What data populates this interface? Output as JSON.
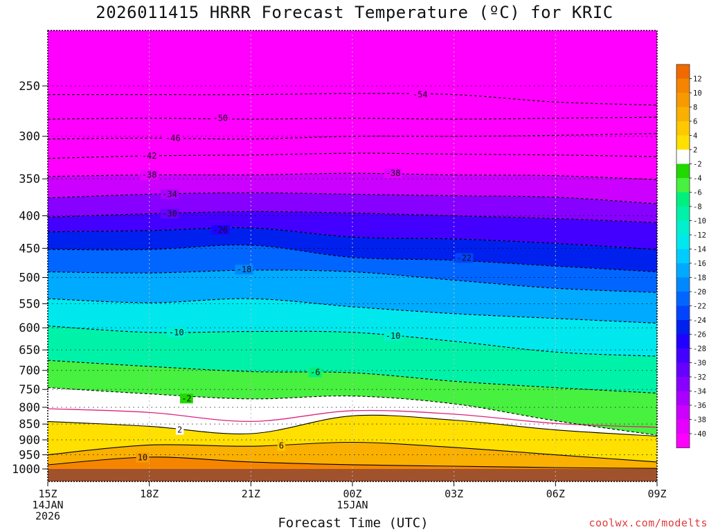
{
  "title": "2026011415 HRRR Forecast Temperature (ºC) for KRIC",
  "credit": "coolwx.com/modelts",
  "chart_data": {
    "type": "heatmap",
    "title": "2026011415 HRRR Forecast Temperature (ºC) for KRIC",
    "xlabel": "Forecast Time (UTC)",
    "ylabel": "",
    "y_scale": "log-pressure (hPa), inverted",
    "ylim": [
      1000,
      200
    ],
    "xlim": [
      "2026-01-14 15Z",
      "2026-01-15 09Z"
    ],
    "grid": true,
    "x_ticks": [
      {
        "hour": 0,
        "lines": [
          "15Z",
          "14JAN",
          "2026"
        ]
      },
      {
        "hour": 3,
        "lines": [
          "18Z"
        ]
      },
      {
        "hour": 6,
        "lines": [
          "21Z"
        ]
      },
      {
        "hour": 9,
        "lines": [
          "00Z",
          "15JAN"
        ]
      },
      {
        "hour": 12,
        "lines": [
          "03Z"
        ]
      },
      {
        "hour": 15,
        "lines": [
          "06Z"
        ]
      },
      {
        "hour": 18,
        "lines": [
          "09Z"
        ]
      }
    ],
    "y_ticks": [
      250,
      300,
      350,
      400,
      450,
      500,
      550,
      600,
      650,
      700,
      750,
      800,
      850,
      900,
      950,
      1000
    ],
    "hours": [
      0,
      3,
      6,
      9,
      12,
      15,
      18
    ],
    "isotherm_pressure_hPa": [
      {
        "temp": 10,
        "p": [
          985,
          958,
          975,
          985,
          990,
          995,
          998
        ]
      },
      {
        "temp": 6,
        "p": [
          950,
          917,
          921,
          908,
          925,
          950,
          975
        ]
      },
      {
        "temp": 2,
        "p": [
          842,
          857,
          880,
          825,
          838,
          868,
          888
        ]
      },
      {
        "temp": 0,
        "p": [
          804,
          815,
          842,
          810,
          820,
          848,
          860
        ]
      },
      {
        "temp": -2,
        "p": [
          745,
          762,
          776,
          768,
          790,
          840,
          885
        ]
      },
      {
        "temp": -6,
        "p": [
          675,
          690,
          703,
          706,
          728,
          745,
          760
        ]
      },
      {
        "temp": -10,
        "p": [
          596,
          610,
          608,
          610,
          630,
          655,
          665
        ]
      },
      {
        "temp": -14,
        "p": [
          540,
          548,
          540,
          556,
          570,
          580,
          590
        ]
      },
      {
        "temp": -18,
        "p": [
          490,
          492,
          487,
          490,
          505,
          520,
          528
        ]
      },
      {
        "temp": -22,
        "p": [
          452,
          452,
          445,
          465,
          470,
          480,
          490
        ]
      },
      {
        "temp": -26,
        "p": [
          424,
          422,
          418,
          432,
          435,
          442,
          452
        ]
      },
      {
        "temp": -30,
        "p": [
          402,
          397,
          394,
          396,
          400,
          404,
          410
        ]
      },
      {
        "temp": -34,
        "p": [
          375,
          370,
          368,
          370,
          372,
          374,
          383
        ]
      },
      {
        "temp": -38,
        "p": [
          347,
          345,
          345,
          343,
          345,
          346,
          351
        ]
      },
      {
        "temp": -42,
        "p": [
          325,
          322,
          321,
          319,
          320,
          321,
          323
        ]
      },
      {
        "temp": -46,
        "p": [
          303,
          302,
          303,
          300,
          300,
          299,
          297
        ]
      },
      {
        "temp": -50,
        "p": [
          282,
          281,
          282,
          281,
          282,
          281,
          280
        ]
      },
      {
        "temp": -54,
        "p": [
          258,
          258,
          258,
          257,
          258,
          265,
          268
        ]
      }
    ],
    "contour_labels": [
      {
        "text": "10",
        "hour": 2.8,
        "p": 960
      },
      {
        "text": "6",
        "hour": 6.9,
        "p": 920
      },
      {
        "text": "2",
        "hour": 3.9,
        "p": 868
      },
      {
        "text": "-2",
        "hour": 4.1,
        "p": 775
      },
      {
        "text": "-6",
        "hour": 7.9,
        "p": 705
      },
      {
        "text": "-10",
        "hour": 3.8,
        "p": 610
      },
      {
        "text": "-10",
        "hour": 10.2,
        "p": 618
      },
      {
        "text": "-18",
        "hour": 5.8,
        "p": 486
      },
      {
        "text": "-22",
        "hour": 12.3,
        "p": 466
      },
      {
        "text": "-26",
        "hour": 5.1,
        "p": 421
      },
      {
        "text": "-30",
        "hour": 3.6,
        "p": 397
      },
      {
        "text": "-34",
        "hour": 3.6,
        "p": 370
      },
      {
        "text": "-38",
        "hour": 3.0,
        "p": 345
      },
      {
        "text": "-38",
        "hour": 10.2,
        "p": 343
      },
      {
        "text": "-42",
        "hour": 3.0,
        "p": 322
      },
      {
        "text": "-46",
        "hour": 3.7,
        "p": 302
      },
      {
        "text": "-50",
        "hour": 5.1,
        "p": 281
      },
      {
        "text": "-54",
        "hour": 11.0,
        "p": 258
      }
    ],
    "ground_below_hPa": 1000,
    "colorbar": {
      "labels": [
        12,
        10,
        8,
        6,
        4,
        2,
        -2,
        -4,
        -6,
        -8,
        -10,
        -12,
        -14,
        -16,
        -18,
        -20,
        -22,
        -24,
        -26,
        -28,
        -30,
        -32,
        -34,
        -36,
        -38,
        -40
      ],
      "bands": [
        {
          "min": 12,
          "max": 14,
          "color": "#f06a00"
        },
        {
          "min": 10,
          "max": 12,
          "color": "#f58400"
        },
        {
          "min": 8,
          "max": 10,
          "color": "#f79a00"
        },
        {
          "min": 6,
          "max": 8,
          "color": "#fab000"
        },
        {
          "min": 4,
          "max": 6,
          "color": "#ffc800"
        },
        {
          "min": 2,
          "max": 4,
          "color": "#ffe000"
        },
        {
          "min": -2,
          "max": 2,
          "color": "#ffffff"
        },
        {
          "min": -4,
          "max": -2,
          "color": "#22d800"
        },
        {
          "min": -6,
          "max": -4,
          "color": "#48f040"
        },
        {
          "min": -8,
          "max": -6,
          "color": "#00f080"
        },
        {
          "min": -10,
          "max": -8,
          "color": "#00f2a8"
        },
        {
          "min": -12,
          "max": -10,
          "color": "#00f0d0"
        },
        {
          "min": -14,
          "max": -12,
          "color": "#00e8ee"
        },
        {
          "min": -16,
          "max": -14,
          "color": "#00ccff"
        },
        {
          "min": -18,
          "max": -16,
          "color": "#00aaff"
        },
        {
          "min": -20,
          "max": -18,
          "color": "#0088ff"
        },
        {
          "min": -22,
          "max": -20,
          "color": "#0066ff"
        },
        {
          "min": -24,
          "max": -22,
          "color": "#0044ff"
        },
        {
          "min": -26,
          "max": -24,
          "color": "#0020ee"
        },
        {
          "min": -28,
          "max": -26,
          "color": "#2000ff"
        },
        {
          "min": -30,
          "max": -28,
          "color": "#4400ff"
        },
        {
          "min": -32,
          "max": -30,
          "color": "#6600ff"
        },
        {
          "min": -34,
          "max": -32,
          "color": "#8800ff"
        },
        {
          "min": -36,
          "max": -34,
          "color": "#aa00ff"
        },
        {
          "min": -38,
          "max": -36,
          "color": "#cc00ff"
        },
        {
          "min": -40,
          "max": -38,
          "color": "#e600ff"
        },
        {
          "min": -99,
          "max": -40,
          "color": "#ff00ff"
        }
      ]
    },
    "colors": {
      "ground": "#a0522d",
      "freezing_line": "#e0207a",
      "contour": "#000000",
      "grid": "#bbbbbb"
    }
  }
}
